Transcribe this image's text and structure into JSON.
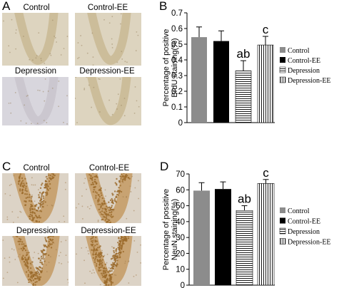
{
  "panels": {
    "A": {
      "letter": "A",
      "images": [
        {
          "label": "Control",
          "stain": "brdu"
        },
        {
          "label": "Control-EE",
          "stain": "brdu"
        },
        {
          "label": "Depression",
          "stain": "brdu-faint"
        },
        {
          "label": "Depression-EE",
          "stain": "brdu"
        }
      ]
    },
    "C": {
      "letter": "C",
      "images": [
        {
          "label": "Control",
          "stain": "neun"
        },
        {
          "label": "Control-EE",
          "stain": "neun"
        },
        {
          "label": "Depression",
          "stain": "neun"
        },
        {
          "label": "Depression-EE",
          "stain": "neun-dense"
        }
      ]
    }
  },
  "chart_data": [
    {
      "panel": "B",
      "type": "bar",
      "categories": [
        "Control",
        "Control-EE",
        "Depression",
        "Depression-EE"
      ],
      "values": [
        0.545,
        0.52,
        0.33,
        0.495
      ],
      "errors": [
        0.065,
        0.065,
        0.065,
        0.055
      ],
      "annotations": [
        "",
        "",
        "ab",
        "c"
      ],
      "fills": [
        "solid-gray",
        "solid-black",
        "h-stripes",
        "v-stripes"
      ],
      "ylabel": "Percentage of positive BrdU staining(%)",
      "ylim": [
        0,
        0.7
      ],
      "yticks": [
        "0",
        "0.1",
        "0.2",
        "0.3",
        "0.4",
        "0.5",
        "0.6",
        "0.7"
      ],
      "legend": [
        "Control",
        "Control-EE",
        "Depression",
        "Depression-EE"
      ],
      "legend_position": "right"
    },
    {
      "panel": "D",
      "type": "bar",
      "categories": [
        "Control",
        "Control-EE",
        "Depression",
        "Depression-EE"
      ],
      "values": [
        59.5,
        60.5,
        47,
        64
      ],
      "errors": [
        5,
        4.5,
        3,
        2.5
      ],
      "annotations": [
        "",
        "",
        "ab",
        "c"
      ],
      "fills": [
        "solid-gray",
        "solid-black",
        "h-stripes",
        "v-stripes"
      ],
      "ylabel": "Percentage of possitive NeuN staining(%)",
      "ylim": [
        0,
        70
      ],
      "yticks": [
        "0",
        "10",
        "20",
        "30",
        "40",
        "50",
        "60",
        "70"
      ],
      "legend": [
        "Control",
        "Control-EE",
        "Depression",
        "Depression-EE"
      ],
      "legend_position": "right"
    }
  ],
  "colors": {
    "gray_bar": "#8c8c8c",
    "black_bar": "#000000",
    "brdu_background": "#ddd4bf",
    "neun_background": "#dcd3c6",
    "neun_cell": "#9b6a2a"
  }
}
